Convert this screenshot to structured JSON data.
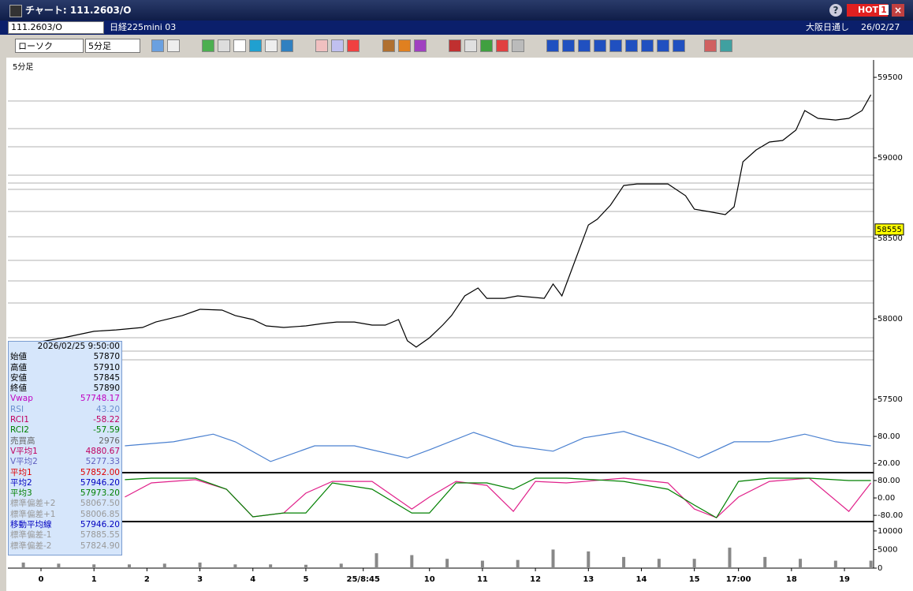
{
  "window": {
    "title": "チャート: 111.2603/O",
    "hot": "HOT",
    "hot_num": "1"
  },
  "toolbar": {
    "symbol": "111.2603/O",
    "name": "日経225mini 03",
    "market": "大阪日通し",
    "date": "26/02/27",
    "chart_type": "ローソク",
    "interval": "5分足"
  },
  "info_panel": {
    "timestamp": "2026/02/25 9:50:00",
    "rows": [
      {
        "label": "始値",
        "value": "57870",
        "color": "#000000"
      },
      {
        "label": "高値",
        "value": "57910",
        "color": "#000000"
      },
      {
        "label": "安値",
        "value": "57845",
        "color": "#000000"
      },
      {
        "label": "終値",
        "value": "57890",
        "color": "#000000"
      },
      {
        "label": "Vwap",
        "value": "57748.17",
        "color": "#c000c0"
      },
      {
        "label": "RSI",
        "value": "43.20",
        "color": "#6a8fd0"
      },
      {
        "label": "RCI1",
        "value": "-58.22",
        "color": "#c00060"
      },
      {
        "label": "RCI2",
        "value": "-57.59",
        "color": "#008000"
      },
      {
        "label": "売買高",
        "value": "2976",
        "color": "#666666"
      },
      {
        "label": "V平均1",
        "value": "4880.67",
        "color": "#c00060"
      },
      {
        "label": "V平均2",
        "value": "5277.33",
        "color": "#6060c0"
      },
      {
        "label": "平均1",
        "value": "57852.00",
        "color": "#e00000"
      },
      {
        "label": "平均2",
        "value": "57946.20",
        "color": "#0000c0"
      },
      {
        "label": "平均3",
        "value": "57973.20",
        "color": "#008000"
      },
      {
        "label": "標準偏差+2",
        "value": "58067.50",
        "color": "#999999"
      },
      {
        "label": "標準偏差+1",
        "value": "58006.85",
        "color": "#999999"
      },
      {
        "label": "移動平均線",
        "value": "57946.20",
        "color": "#0000c0"
      },
      {
        "label": "標準偏差-1",
        "value": "57885.55",
        "color": "#999999"
      },
      {
        "label": "標準偏差-2",
        "value": "57824.90",
        "color": "#999999"
      }
    ]
  },
  "chart_data": [
    {
      "type": "line",
      "panel_label": "5分足",
      "last_price": 58555,
      "xlim": [
        -7.5,
        188.6
      ],
      "xticks": [
        {
          "value": 0,
          "label": "0"
        },
        {
          "value": 12,
          "label": "1"
        },
        {
          "value": 24,
          "label": "2"
        },
        {
          "value": 36,
          "label": "3"
        },
        {
          "value": 48,
          "label": "4"
        },
        {
          "value": 60,
          "label": "5"
        },
        {
          "value": 73,
          "label": "25/8:45"
        },
        {
          "value": 88,
          "label": "10"
        },
        {
          "value": 100,
          "label": "11"
        },
        {
          "value": 112,
          "label": "12"
        },
        {
          "value": 124,
          "label": "13"
        },
        {
          "value": 136,
          "label": "14"
        },
        {
          "value": 148,
          "label": "15"
        },
        {
          "value": 158,
          "label": "17:00"
        },
        {
          "value": 170,
          "label": "18"
        },
        {
          "value": 182,
          "label": "19"
        }
      ],
      "ylim": [
        57348,
        59608
      ],
      "yticks": [
        57500,
        58000,
        58500,
        59000,
        59500
      ],
      "x": [
        -7,
        5,
        12,
        17,
        23,
        26,
        32,
        36,
        41,
        44,
        48,
        51,
        55,
        60,
        64,
        67,
        71,
        75,
        78,
        81,
        83,
        85,
        88,
        91,
        93,
        96,
        99,
        101,
        105,
        108,
        114,
        116,
        118,
        121,
        124,
        126,
        129,
        132,
        135,
        139,
        142,
        146,
        148,
        151,
        155,
        157,
        159,
        162,
        165,
        168,
        171,
        173,
        176,
        180,
        183,
        186,
        188
      ],
      "series": [
        {
          "color": "#000000",
          "values": [
            57824,
            57882,
            57922,
            57931,
            57946,
            57980,
            58020,
            58059,
            58054,
            58020,
            57995,
            57956,
            57946,
            57956,
            57971,
            57980,
            57980,
            57961,
            57961,
            57995,
            57863,
            57824,
            57882,
            57961,
            58020,
            58142,
            58191,
            58127,
            58127,
            58142,
            58127,
            58216,
            58142,
            58363,
            58583,
            58618,
            58706,
            58828,
            58838,
            58838,
            58838,
            58765,
            58681,
            58667,
            58647,
            58696,
            58975,
            59049,
            59098,
            59108,
            59172,
            59294,
            59245,
            59235,
            59245,
            59294,
            59392
          ]
        }
      ]
    },
    {
      "type": "line",
      "ylim": [
        1,
        103
      ],
      "yticks": [
        {
          "value": 80,
          "label": "80.00"
        },
        {
          "value": 20,
          "label": "20.00"
        }
      ],
      "x": [
        19,
        30,
        39,
        44,
        52,
        62,
        71,
        83,
        88,
        98,
        107,
        116,
        123,
        132,
        142,
        149,
        157,
        165,
        173,
        180,
        188
      ],
      "series": [
        {
          "color": "#4a80d0",
          "values": [
            59,
            68,
            85,
            68,
            24,
            59,
            59,
            32,
            50,
            89,
            59,
            47,
            77,
            91,
            59,
            32,
            68,
            68,
            85,
            68,
            59
          ]
        }
      ]
    },
    {
      "type": "line",
      "ylim": [
        -105,
        109
      ],
      "yticks": [
        {
          "value": 80,
          "label": "80.00"
        },
        {
          "value": 0,
          "label": "0.00"
        },
        {
          "value": -80,
          "label": "-80.00"
        }
      ],
      "x": [
        19,
        25,
        35,
        42,
        48,
        55,
        60,
        66,
        75,
        84,
        88,
        94,
        101,
        107,
        112,
        119,
        132,
        142,
        148,
        153,
        158,
        165,
        174,
        183,
        188
      ],
      "series": [
        {
          "color": "#e0208a",
          "values": [
            4,
            69,
            84,
            40,
            -87,
            -69,
            22,
            76,
            76,
            -51,
            4,
            76,
            58,
            -62,
            76,
            69,
            91,
            69,
            -51,
            -91,
            4,
            76,
            91,
            -62,
            69
          ]
        },
        {
          "color": "#008000",
          "values": [
            84,
            91,
            91,
            40,
            -87,
            -69,
            -69,
            69,
            40,
            -69,
            -69,
            69,
            69,
            40,
            91,
            91,
            76,
            40,
            -33,
            -91,
            76,
            91,
            91,
            80,
            80
          ]
        }
      ]
    },
    {
      "type": "bar",
      "ylim": [
        0,
        12100
      ],
      "yticks": [
        10000,
        5000,
        0
      ],
      "color": "#888888",
      "x": [
        -4,
        4,
        12,
        20,
        28,
        36,
        44,
        52,
        60,
        68,
        76,
        84,
        92,
        100,
        108,
        116,
        124,
        132,
        140,
        148,
        156,
        164,
        172,
        180,
        188
      ],
      "values": [
        1500,
        1200,
        1000,
        1000,
        1200,
        1500,
        1000,
        1000,
        900,
        1200,
        4000,
        3500,
        2500,
        2000,
        2200,
        5000,
        4500,
        3000,
        2500,
        2500,
        5500,
        3000,
        2500,
        2000,
        2000
      ]
    }
  ]
}
